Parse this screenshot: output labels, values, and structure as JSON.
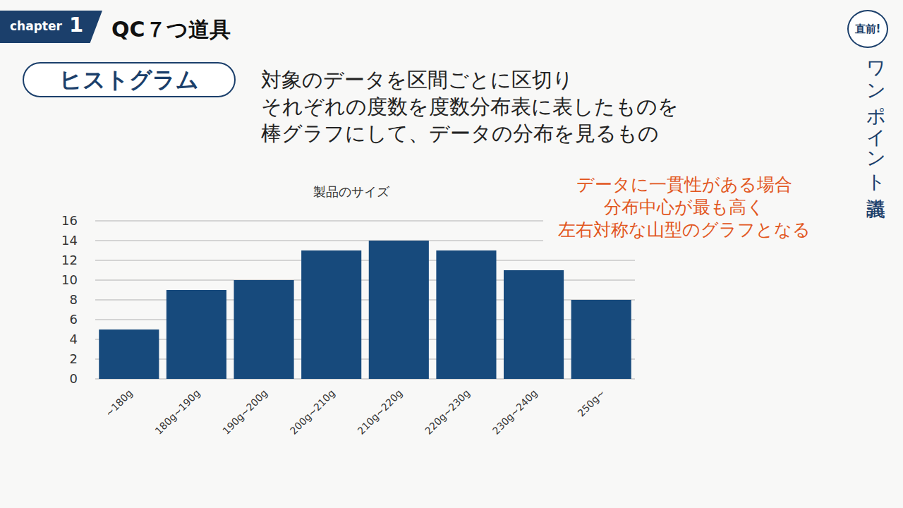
{
  "header": {
    "chapter_label": "chapter",
    "chapter_number": "1",
    "title": "QC７つ道具"
  },
  "badge": "直前!",
  "side_title": "ワンポイント講義",
  "section": {
    "title": "ヒストグラム",
    "description": [
      "対象のデータを区間ごとに区切り",
      "それぞれの度数を度数分布表に表したものを",
      "棒グラフにして、データの分布を見るもの"
    ]
  },
  "chart_data": {
    "type": "bar",
    "title": "製品のサイズ",
    "categories": [
      "~180g",
      "180g~190g",
      "190g~200g",
      "200g~210g",
      "210g~220g",
      "220g~230g",
      "230g~240g",
      "250g~"
    ],
    "values": [
      5,
      9,
      10,
      13,
      14,
      13,
      11,
      8
    ],
    "color": "#174a7c",
    "ylim": [
      0,
      16
    ],
    "yticks": [
      0,
      2,
      4,
      6,
      8,
      10,
      12,
      14,
      16
    ],
    "grid": true,
    "annotations": [
      "データに一貫性がある場合",
      "分布中心が最も高く",
      "左右対称な山型のグラフとなる"
    ]
  }
}
